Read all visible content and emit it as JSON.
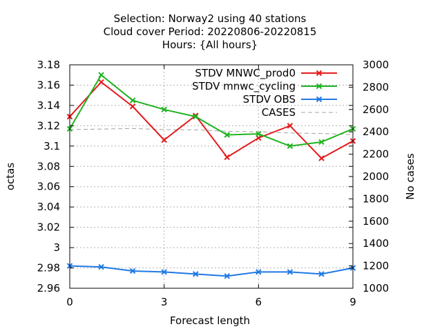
{
  "chart_data": {
    "type": "line",
    "title_lines": [
      "Selection: Norway2 using    40 stations",
      "Cloud cover   Period: 20220806-20220815",
      "Hours: {All hours}"
    ],
    "xlabel": "Forecast length",
    "ylabel": "octas",
    "y2label": "No cases",
    "x": [
      0,
      1,
      2,
      3,
      4,
      5,
      6,
      7,
      8,
      9
    ],
    "xlim": [
      0,
      9
    ],
    "xticks": [
      "0",
      "3",
      "6",
      "9"
    ],
    "ylim": [
      2.96,
      3.18
    ],
    "yticks": [
      "2.96",
      "2.98",
      "3",
      "3.02",
      "3.04",
      "3.06",
      "3.08",
      "3.1",
      "3.12",
      "3.14",
      "3.16",
      "3.18"
    ],
    "y2lim": [
      1000,
      3000
    ],
    "y2ticks": [
      "1000",
      "1200",
      "1400",
      "1600",
      "1800",
      "2000",
      "2200",
      "2400",
      "2600",
      "2800",
      "3000"
    ],
    "grid": true,
    "legend_position": "top-right",
    "series": [
      {
        "name": "STDV MNWC_prod0",
        "axis": "y",
        "color": "#e41a1c",
        "style": "solid",
        "marker": "x",
        "values": [
          3.129,
          3.163,
          3.139,
          3.106,
          3.13,
          3.089,
          3.108,
          3.12,
          3.088,
          3.105
        ]
      },
      {
        "name": "STDV mnwc_cycling",
        "axis": "y",
        "color": "#1fb31f",
        "style": "solid",
        "marker": "x",
        "values": [
          3.117,
          3.17,
          3.145,
          3.136,
          3.129,
          3.111,
          3.112,
          3.1,
          3.104,
          3.117
        ]
      },
      {
        "name": "STDV OBS",
        "axis": "y",
        "color": "#1f78e4",
        "style": "solid",
        "marker": "x",
        "values": [
          2.982,
          2.981,
          2.977,
          2.976,
          2.974,
          2.972,
          2.976,
          2.976,
          2.974,
          2.98
        ]
      },
      {
        "name": "CASES",
        "axis": "y2",
        "color": "#a0a0a0",
        "style": "dashed",
        "marker": "none",
        "values": [
          2420,
          2425,
          2430,
          2420,
          2418,
          2405,
          2400,
          2390,
          2385,
          2375
        ]
      }
    ]
  }
}
